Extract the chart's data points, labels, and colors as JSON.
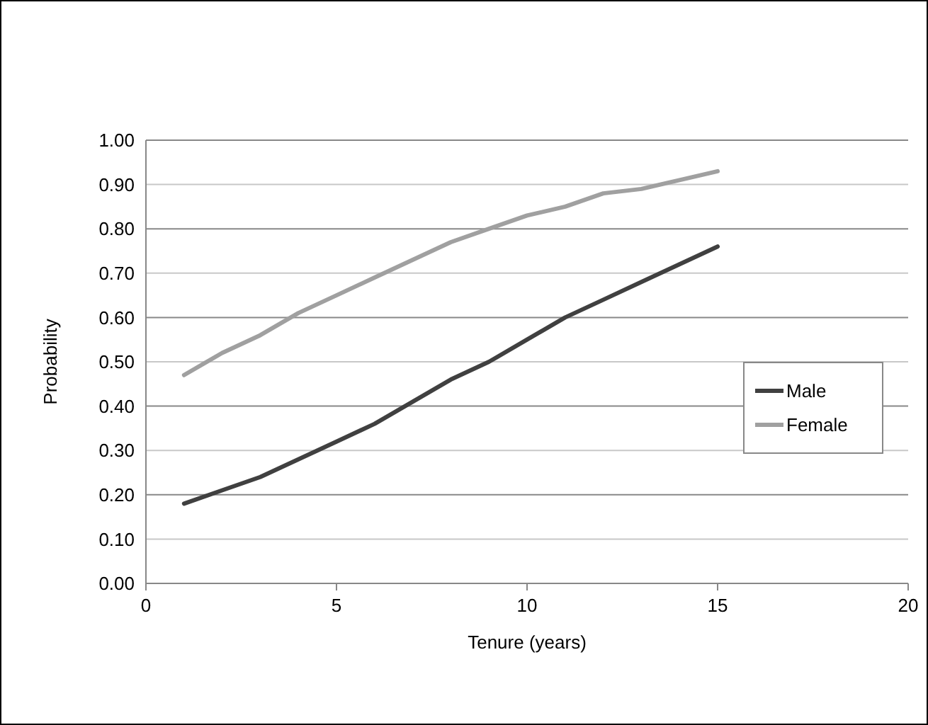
{
  "chart_data": {
    "type": "line",
    "xlabel": "Tenure (years)",
    "ylabel": "Probability",
    "x": [
      1,
      2,
      3,
      4,
      5,
      6,
      7,
      8,
      9,
      10,
      11,
      12,
      13,
      14,
      15
    ],
    "series": [
      {
        "name": "Male",
        "color": "#404040",
        "values": [
          0.18,
          0.21,
          0.24,
          0.28,
          0.32,
          0.36,
          0.41,
          0.46,
          0.5,
          0.55,
          0.6,
          0.64,
          0.68,
          0.72,
          0.76
        ]
      },
      {
        "name": "Female",
        "color": "#a0a0a0",
        "values": [
          0.47,
          0.52,
          0.56,
          0.61,
          0.65,
          0.69,
          0.73,
          0.77,
          0.8,
          0.83,
          0.85,
          0.88,
          0.89,
          0.91,
          0.93
        ]
      }
    ],
    "xlim": [
      0,
      20
    ],
    "xticks": [
      0,
      5,
      10,
      15,
      20
    ],
    "ylim": [
      0,
      1
    ],
    "yticks": [
      {
        "value": 0,
        "label": "0.00"
      },
      {
        "value": 0.1,
        "label": "0.10"
      },
      {
        "value": 0.2,
        "label": "0.20"
      },
      {
        "value": 0.3,
        "label": "0.30"
      },
      {
        "value": 0.4,
        "label": "0.40"
      },
      {
        "value": 0.5,
        "label": "0.50"
      },
      {
        "value": 0.6,
        "label": "0.60"
      },
      {
        "value": 0.7,
        "label": "0.70"
      },
      {
        "value": 0.8,
        "label": "0.80"
      },
      {
        "value": 0.9,
        "label": "0.90"
      },
      {
        "value": 1,
        "label": "1.00"
      }
    ],
    "grid": "y",
    "legend": "right",
    "marker": "none",
    "line_style": "solid"
  }
}
